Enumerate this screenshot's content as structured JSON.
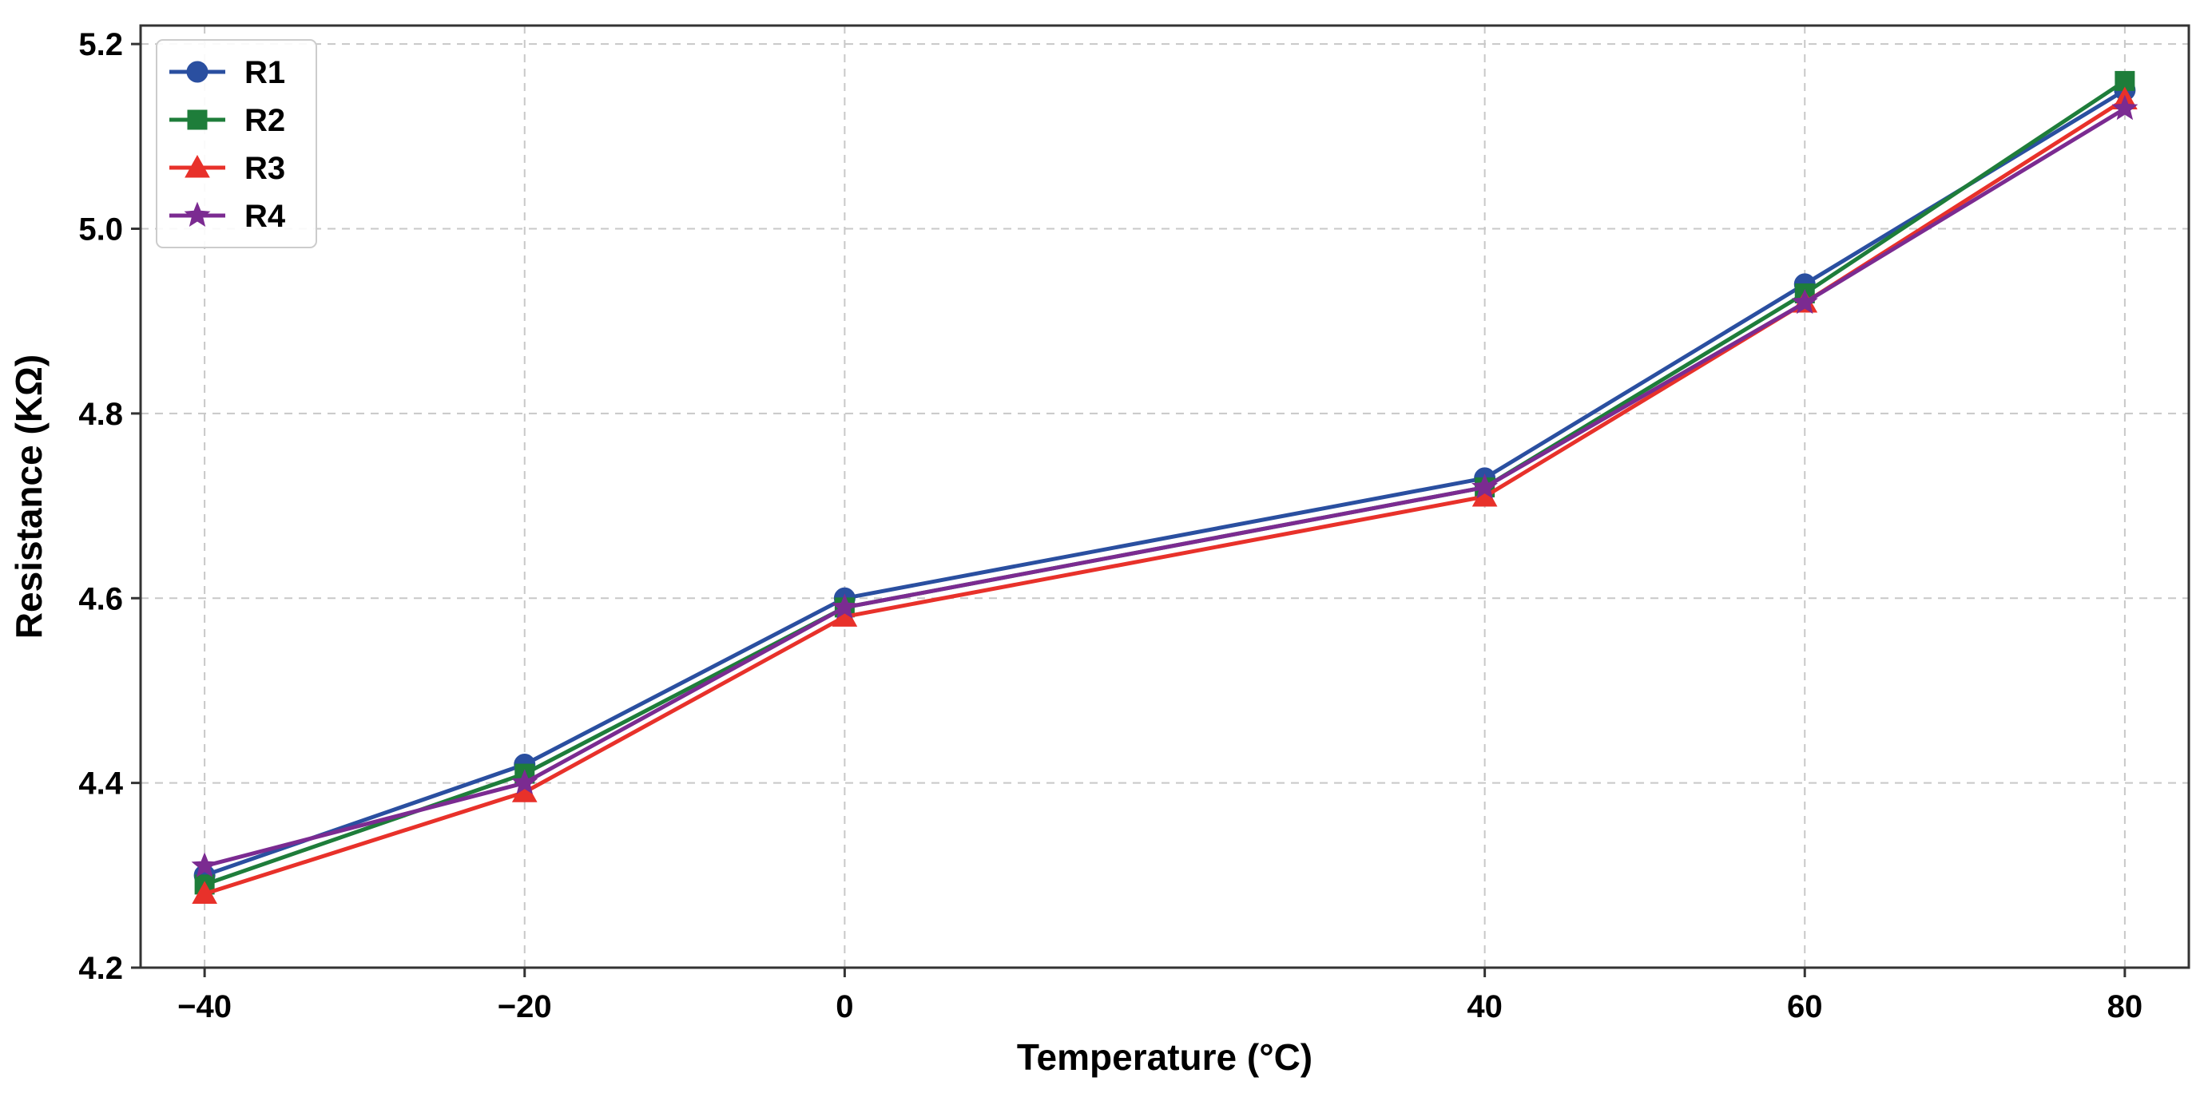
{
  "chart_data": {
    "type": "line",
    "title": "",
    "xlabel": "Temperature (°C)",
    "ylabel": "Resistance (KΩ)",
    "x": [
      -40,
      -20,
      0,
      40,
      60,
      80
    ],
    "x_tick_labels": [
      "−40",
      "−20",
      "0",
      "40",
      "60",
      "80"
    ],
    "xlim": [
      -44,
      84
    ],
    "ylim": [
      4.2,
      5.22
    ],
    "y_ticks": [
      4.2,
      4.4,
      4.6,
      4.8,
      5.0,
      5.2
    ],
    "y_tick_labels": [
      "4.2",
      "4.4",
      "4.6",
      "4.8",
      "5.0",
      "5.2"
    ],
    "grid": true,
    "legend_position": "top-left",
    "series": [
      {
        "name": "R1",
        "color": "#2a4fa0",
        "marker": "circle",
        "values": [
          4.3,
          4.42,
          4.6,
          4.73,
          4.94,
          5.15
        ]
      },
      {
        "name": "R2",
        "color": "#1e7d3a",
        "marker": "square",
        "values": [
          4.29,
          4.41,
          4.59,
          4.72,
          4.93,
          5.16
        ]
      },
      {
        "name": "R3",
        "color": "#e8312a",
        "marker": "triangle",
        "values": [
          4.28,
          4.39,
          4.58,
          4.71,
          4.92,
          5.14
        ]
      },
      {
        "name": "R4",
        "color": "#7b2b91",
        "marker": "star",
        "values": [
          4.31,
          4.4,
          4.59,
          4.72,
          4.92,
          5.13
        ]
      }
    ]
  }
}
